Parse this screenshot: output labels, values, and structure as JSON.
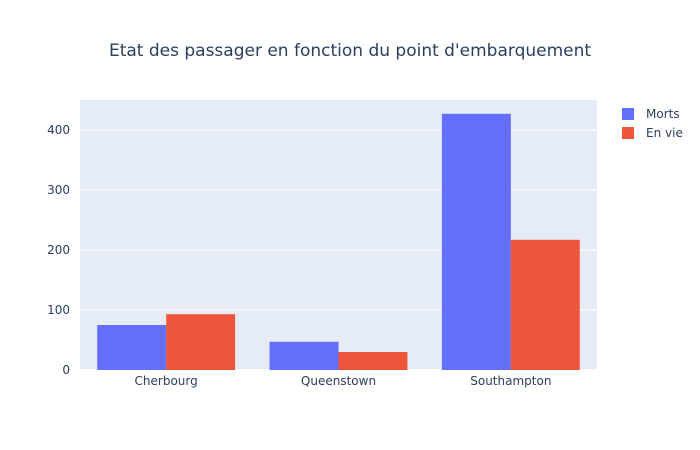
{
  "chart_data": {
    "type": "bar",
    "title": "Etat des passager en fonction du point d'embarquement",
    "xlabel": "",
    "ylabel": "",
    "categories": [
      "Cherbourg",
      "Queenstown",
      "Southampton"
    ],
    "series": [
      {
        "name": "Morts",
        "values": [
          75,
          47,
          427
        ],
        "color": "#636efa"
      },
      {
        "name": "En vie",
        "values": [
          93,
          30,
          217
        ],
        "color": "#ef553b"
      }
    ],
    "ylim": [
      0,
      450
    ],
    "yticks": [
      0,
      100,
      200,
      300,
      400
    ],
    "grid": true,
    "legend_position": "top-right",
    "plot_background": "#e5ecf6",
    "gridline_color": "#ffffff"
  }
}
